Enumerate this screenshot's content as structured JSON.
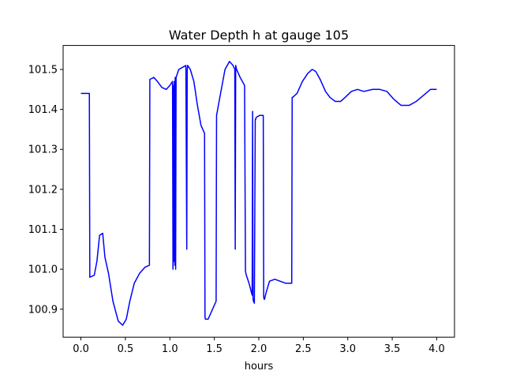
{
  "chart_data": {
    "type": "line",
    "title": "Water Depth h at gauge 105",
    "xlabel": "hours",
    "ylabel": "",
    "xlim": [
      -0.2,
      4.2
    ],
    "ylim": [
      100.83,
      101.56
    ],
    "x_ticks": [
      0.0,
      0.5,
      1.0,
      1.5,
      2.0,
      2.5,
      3.0,
      3.5,
      4.0
    ],
    "x_tick_labels": [
      "0.0",
      "0.5",
      "1.0",
      "1.5",
      "2.0",
      "2.5",
      "3.0",
      "3.5",
      "4.0"
    ],
    "y_ticks": [
      100.9,
      101.0,
      101.1,
      101.2,
      101.3,
      101.4,
      101.5
    ],
    "y_tick_labels": [
      "100.9",
      "101.0",
      "101.1",
      "101.2",
      "101.3",
      "101.4",
      "101.5"
    ],
    "grid": false,
    "legend": "none",
    "series": [
      {
        "color": "#0000ff",
        "x": [
          0.0,
          0.09,
          0.095,
          0.1,
          0.15,
          0.18,
          0.21,
          0.245,
          0.27,
          0.31,
          0.36,
          0.42,
          0.47,
          0.51,
          0.55,
          0.6,
          0.66,
          0.72,
          0.77,
          0.775,
          0.82,
          0.86,
          0.91,
          0.96,
          1.0,
          1.03,
          1.035,
          1.04,
          1.045,
          1.05,
          1.055,
          1.06,
          1.065,
          1.07,
          1.1,
          1.14,
          1.18,
          1.19,
          1.195,
          1.2,
          1.23,
          1.27,
          1.31,
          1.35,
          1.39,
          1.395,
          1.4,
          1.43,
          1.47,
          1.52,
          1.525,
          1.57,
          1.62,
          1.67,
          1.71,
          1.73,
          1.735,
          1.74,
          1.745,
          1.75,
          1.79,
          1.84,
          1.85,
          1.86,
          1.89,
          1.925,
          1.93,
          1.935,
          1.94,
          1.95,
          1.96,
          1.965,
          1.97,
          2.01,
          2.05,
          2.055,
          2.06,
          2.065,
          2.08,
          2.12,
          2.18,
          2.24,
          2.3,
          2.37,
          2.375,
          2.38,
          2.43,
          2.49,
          2.55,
          2.6,
          2.64,
          2.69,
          2.75,
          2.8,
          2.86,
          2.92,
          2.97,
          3.04,
          3.11,
          3.18,
          3.28,
          3.36,
          3.44,
          3.52,
          3.6,
          3.69,
          3.77,
          3.85,
          3.93,
          4.0
        ],
        "y": [
          101.44,
          101.44,
          101.44,
          100.98,
          100.985,
          101.02,
          101.085,
          101.09,
          101.03,
          100.99,
          100.92,
          100.87,
          100.86,
          100.875,
          100.92,
          100.965,
          100.99,
          101.005,
          101.01,
          101.475,
          101.48,
          101.47,
          101.455,
          101.45,
          101.46,
          101.47,
          101.0,
          101.46,
          101.02,
          101.47,
          101.01,
          101.48,
          101.0,
          101.48,
          101.5,
          101.505,
          101.51,
          101.05,
          101.5,
          101.51,
          101.5,
          101.47,
          101.41,
          101.36,
          101.34,
          100.88,
          100.875,
          100.875,
          100.895,
          100.92,
          101.385,
          101.44,
          101.5,
          101.52,
          101.51,
          101.5,
          101.05,
          101.51,
          101.505,
          101.5,
          101.48,
          101.46,
          100.995,
          100.985,
          100.965,
          100.935,
          101.395,
          100.925,
          100.92,
          100.915,
          101.375,
          101.375,
          101.38,
          101.385,
          101.385,
          100.93,
          100.925,
          100.925,
          100.94,
          100.97,
          100.975,
          100.97,
          100.965,
          100.965,
          101.43,
          101.43,
          101.44,
          101.47,
          101.49,
          101.5,
          101.495,
          101.475,
          101.445,
          101.43,
          101.42,
          101.42,
          101.43,
          101.445,
          101.45,
          101.445,
          101.45,
          101.45,
          101.445,
          101.425,
          101.41,
          101.41,
          101.42,
          101.435,
          101.45,
          101.45
        ]
      }
    ]
  }
}
